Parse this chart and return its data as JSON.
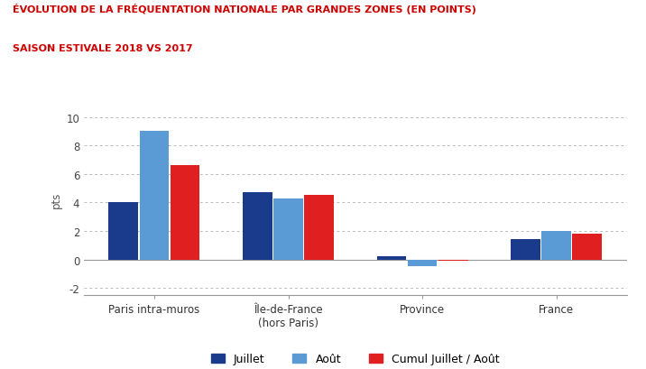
{
  "title_line1": "ÉVOLUTION DE LA FRÉQUENTATION NATIONALE PAR GRANDES ZONES (EN POINTS)",
  "title_line2": "SAISON ESTIVALE 2018 VS 2017",
  "categories": [
    "Paris intra-muros",
    "Île-de-France\n(hors Paris)",
    "Province",
    "France"
  ],
  "juillet": [
    4.0,
    4.7,
    0.2,
    1.4
  ],
  "aout": [
    9.0,
    4.3,
    -0.5,
    2.0
  ],
  "cumul": [
    6.6,
    4.5,
    -0.1,
    1.8
  ],
  "color_juillet": "#1a3a8c",
  "color_aout": "#5b9bd5",
  "color_cumul": "#e02020",
  "ylabel": "pts",
  "ylim": [
    -2.5,
    11
  ],
  "yticks": [
    -2,
    0,
    2,
    4,
    6,
    8,
    10
  ],
  "legend_labels": [
    "Juillet",
    "Août",
    "Cumul Juillet / Août"
  ],
  "background_color": "#ffffff",
  "title_color": "#cc0000",
  "grid_color": "#bbbbbb"
}
